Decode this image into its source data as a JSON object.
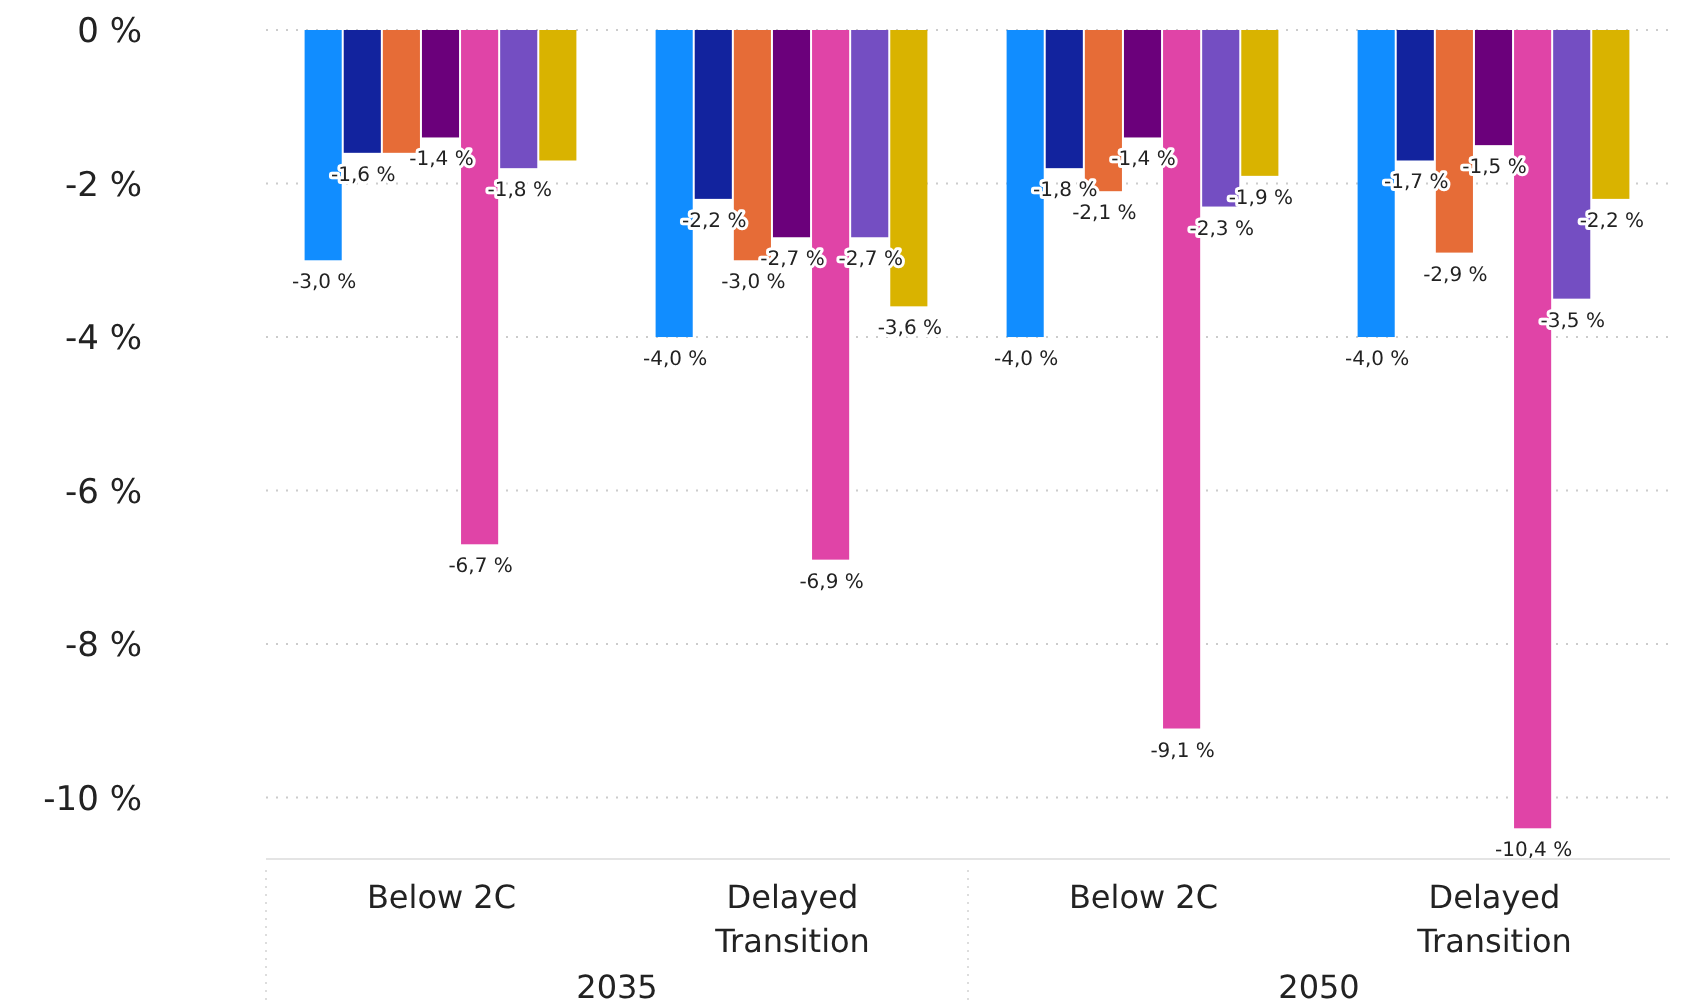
{
  "chart_data": {
    "type": "bar",
    "categories": [
      "Below 2C",
      "Delayed Transition",
      "Below 2C",
      "Delayed Transition"
    ],
    "annotations": [
      "2035",
      "2050"
    ],
    "series": [
      {
        "color": "#118dff",
        "values": [
          -3.0,
          -4.0,
          -4.0,
          -4.0
        ],
        "value_labels": [
          "-3,0 %",
          "-4,0 %",
          "-4,0 %",
          "-4,0 %"
        ]
      },
      {
        "color": "#12239e",
        "values": [
          -1.6,
          -2.2,
          -1.8,
          -1.7
        ],
        "value_labels": [
          "-1,6 %",
          "-2,2 %",
          "-1,8 %",
          "-1,7 %"
        ]
      },
      {
        "color": "#e66c37",
        "values": [
          -1.6,
          -3.0,
          -2.1,
          -2.9
        ],
        "value_labels": [
          null,
          "-3,0 %",
          "-2,1 %",
          "-2,9 %"
        ]
      },
      {
        "color": "#6b007b",
        "values": [
          -1.4,
          -2.7,
          -1.4,
          -1.5
        ],
        "value_labels": [
          "-1,4 %",
          "-2,7 %",
          "-1,4 %",
          "-1,5 %"
        ]
      },
      {
        "color": "#e044a7",
        "values": [
          -6.7,
          -6.9,
          -9.1,
          -10.4
        ],
        "value_labels": [
          "-6,7 %",
          "-6,9 %",
          "-9,1 %",
          "-10,4 %"
        ]
      },
      {
        "color": "#744ec2",
        "values": [
          -1.8,
          -2.7,
          -2.3,
          -3.5
        ],
        "value_labels": [
          "-1,8 %",
          "-2,7 %",
          "-2,3 %",
          "-3,5 %"
        ]
      },
      {
        "color": "#d9b300",
        "values": [
          -1.7,
          -3.6,
          -1.9,
          -2.2
        ],
        "value_labels": [
          null,
          "-3,6 %",
          "-1,9 %",
          "-2,2 %"
        ]
      }
    ],
    "ylim": [
      -10.8,
      0
    ],
    "yticks": [
      {
        "value": 0,
        "label": "0 %"
      },
      {
        "value": -2,
        "label": "-2 %"
      },
      {
        "value": -4,
        "label": "-4 %"
      },
      {
        "value": -6,
        "label": "-6 %"
      },
      {
        "value": -8,
        "label": "-8 %"
      },
      {
        "value": -10,
        "label": "-10 %"
      }
    ],
    "grid": "y"
  }
}
